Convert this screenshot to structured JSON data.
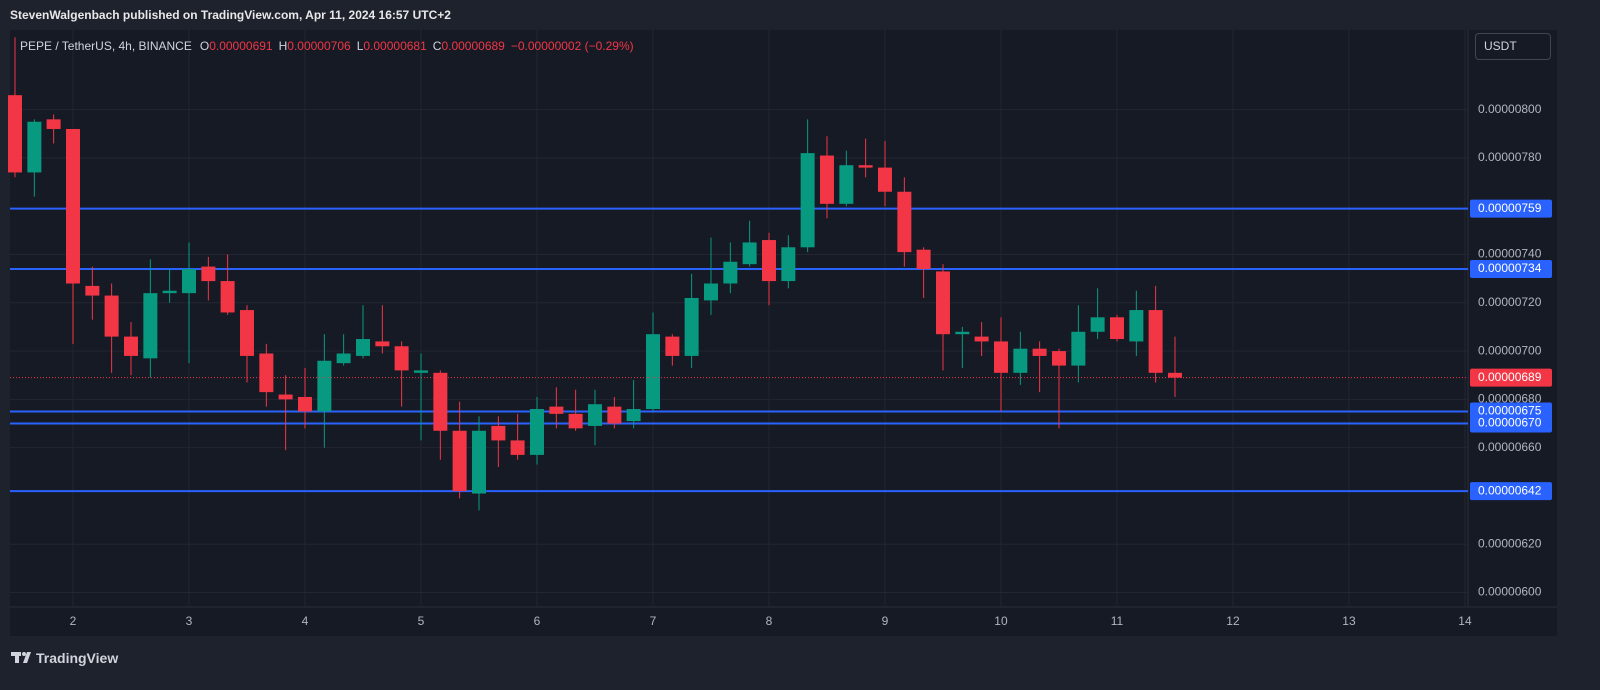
{
  "header": {
    "publisher": "StevenWalgenbach published on TradingView.com, Apr 11, 2024 16:57 UTC+2"
  },
  "currency": "USDT",
  "footer": {
    "brand": "TradingView"
  },
  "chart_data": {
    "type": "candlestick",
    "title": "PEPE / TetherUS, 4h, BINANCE",
    "ohlc_names": [
      "O",
      "H",
      "L",
      "C"
    ],
    "ohlc_values": [
      "0.00000691",
      "0.00000706",
      "0.00000681",
      "0.00000689"
    ],
    "change": "−0.00000002 (−0.29%)",
    "up_color": "#089981",
    "down_color": "#f23645",
    "x": [
      1.5,
      1.667,
      1.833,
      2,
      2.167,
      2.333,
      2.5,
      2.667,
      2.833,
      3,
      3.167,
      3.333,
      3.5,
      3.667,
      3.833,
      4,
      4.167,
      4.333,
      4.5,
      4.667,
      4.833,
      5,
      5.167,
      5.333,
      5.5,
      5.667,
      5.833,
      6,
      6.167,
      6.333,
      6.5,
      6.667,
      6.833,
      7,
      7.167,
      7.333,
      7.5,
      7.667,
      7.833,
      8,
      8.167,
      8.333,
      8.5,
      8.667,
      8.833,
      9,
      9.167,
      9.333,
      9.5,
      9.667,
      9.833,
      10,
      10.167,
      10.333,
      10.5,
      10.667,
      10.833,
      11,
      11.167,
      11.333,
      11.5
    ],
    "open": [
      8.06e-06,
      7.74e-06,
      7.96e-06,
      7.92e-06,
      7.27e-06,
      7.23e-06,
      7.06e-06,
      6.97e-06,
      7.24e-06,
      7.24e-06,
      7.35e-06,
      7.29e-06,
      7.17e-06,
      6.99e-06,
      6.82e-06,
      6.81e-06,
      6.75e-06,
      6.95e-06,
      6.98e-06,
      7.04e-06,
      7.02e-06,
      6.91e-06,
      6.91e-06,
      6.67e-06,
      6.41e-06,
      6.69e-06,
      6.63e-06,
      6.57e-06,
      6.77e-06,
      6.74e-06,
      6.69e-06,
      6.77e-06,
      6.71e-06,
      6.76e-06,
      7.06e-06,
      6.98e-06,
      7.21e-06,
      7.28e-06,
      7.36e-06,
      7.46e-06,
      7.29e-06,
      7.43e-06,
      7.81e-06,
      7.61e-06,
      7.77e-06,
      7.76e-06,
      7.66e-06,
      7.42e-06,
      7.33e-06,
      7.07e-06,
      7.06e-06,
      7.04e-06,
      6.91e-06,
      7.01e-06,
      7e-06,
      6.94e-06,
      7.08e-06,
      7.14e-06,
      7.04e-06,
      7.17e-06,
      6.91e-06
    ],
    "high": [
      8.3e-06,
      7.96e-06,
      7.98e-06,
      7.92e-06,
      7.35e-06,
      7.28e-06,
      7.12e-06,
      7.38e-06,
      7.34e-06,
      7.45e-06,
      7.39e-06,
      7.4e-06,
      7.19e-06,
      7.03e-06,
      6.9e-06,
      6.93e-06,
      7.07e-06,
      7.07e-06,
      7.19e-06,
      7.19e-06,
      7.04e-06,
      6.99e-06,
      6.92e-06,
      6.79e-06,
      6.73e-06,
      6.73e-06,
      6.74e-06,
      6.81e-06,
      6.85e-06,
      6.84e-06,
      6.84e-06,
      6.81e-06,
      6.88e-06,
      7.16e-06,
      7.07e-06,
      7.32e-06,
      7.47e-06,
      7.45e-06,
      7.54e-06,
      7.49e-06,
      7.48e-06,
      7.96e-06,
      7.89e-06,
      7.83e-06,
      7.88e-06,
      7.87e-06,
      7.72e-06,
      7.43e-06,
      7.36e-06,
      7.1e-06,
      7.12e-06,
      7.14e-06,
      7.08e-06,
      7.04e-06,
      7.01e-06,
      7.19e-06,
      7.26e-06,
      7.15e-06,
      7.25e-06,
      7.27e-06,
      7.06e-06
    ],
    "low": [
      7.72e-06,
      7.64e-06,
      7.86e-06,
      7.03e-06,
      7.13e-06,
      6.91e-06,
      6.9e-06,
      6.89e-06,
      7.2e-06,
      6.95e-06,
      7.21e-06,
      7.15e-06,
      6.87e-06,
      6.77e-06,
      6.59e-06,
      6.68e-06,
      6.6e-06,
      6.94e-06,
      6.97e-06,
      6.99e-06,
      6.77e-06,
      6.63e-06,
      6.55e-06,
      6.39e-06,
      6.34e-06,
      6.52e-06,
      6.55e-06,
      6.53e-06,
      6.68e-06,
      6.67e-06,
      6.61e-06,
      6.68e-06,
      6.68e-06,
      6.75e-06,
      6.94e-06,
      6.93e-06,
      7.15e-06,
      7.24e-06,
      7.35e-06,
      7.19e-06,
      7.26e-06,
      7.41e-06,
      7.55e-06,
      7.6e-06,
      7.72e-06,
      7.6e-06,
      7.35e-06,
      7.22e-06,
      6.92e-06,
      6.93e-06,
      6.98e-06,
      6.75e-06,
      6.86e-06,
      6.83e-06,
      6.68e-06,
      6.87e-06,
      7.05e-06,
      7.04e-06,
      6.98e-06,
      6.87e-06,
      6.81e-06
    ],
    "close": [
      7.74e-06,
      7.95e-06,
      7.92e-06,
      7.28e-06,
      7.23e-06,
      7.06e-06,
      6.98e-06,
      7.24e-06,
      7.25e-06,
      7.34e-06,
      7.29e-06,
      7.16e-06,
      6.98e-06,
      6.83e-06,
      6.8e-06,
      6.75e-06,
      6.96e-06,
      6.99e-06,
      7.05e-06,
      7.02e-06,
      6.92e-06,
      6.92e-06,
      6.67e-06,
      6.42e-06,
      6.67e-06,
      6.63e-06,
      6.57e-06,
      6.76e-06,
      6.74e-06,
      6.68e-06,
      6.78e-06,
      6.7e-06,
      6.76e-06,
      7.07e-06,
      6.98e-06,
      7.22e-06,
      7.28e-06,
      7.37e-06,
      7.45e-06,
      7.29e-06,
      7.43e-06,
      7.82e-06,
      7.61e-06,
      7.77e-06,
      7.76e-06,
      7.66e-06,
      7.41e-06,
      7.34e-06,
      7.07e-06,
      7.08e-06,
      7.04e-06,
      6.91e-06,
      7.01e-06,
      6.98e-06,
      6.94e-06,
      7.08e-06,
      7.14e-06,
      7.05e-06,
      7.17e-06,
      6.91e-06,
      6.89e-06
    ],
    "xlim": [
      1.457,
      14.026
    ],
    "xticks": [
      2,
      3,
      4,
      5,
      6,
      7,
      8,
      9,
      10,
      11,
      12,
      13,
      14
    ],
    "ylim": [
      5.94e-06,
      8.33e-06
    ],
    "yticks": [
      {
        "value": 8e-06,
        "label": "0.00000800"
      },
      {
        "value": 7.8e-06,
        "label": "0.00000780"
      },
      {
        "value": 7.4e-06,
        "label": "0.00000740"
      },
      {
        "value": 7.2e-06,
        "label": "0.00000720"
      },
      {
        "value": 7e-06,
        "label": "0.00000700"
      },
      {
        "value": 6.8e-06,
        "label": "0.00000680"
      },
      {
        "value": 6.6e-06,
        "label": "0.00000660"
      },
      {
        "value": 6.2e-06,
        "label": "0.00000620"
      },
      {
        "value": 6e-06,
        "label": "0.00000600"
      }
    ],
    "grid": true,
    "level_color": "#2962ff",
    "levels": [
      {
        "value": 7.59e-06,
        "label": "0.00000759"
      },
      {
        "value": 7.34e-06,
        "label": "0.00000734"
      },
      {
        "value": 6.75e-06,
        "label": "0.00000675"
      },
      {
        "value": 6.7e-06,
        "label": "0.00000670"
      },
      {
        "value": 6.42e-06,
        "label": "0.00000642"
      }
    ],
    "last_price": {
      "value": 6.89e-06,
      "label": "0.00000689"
    }
  }
}
